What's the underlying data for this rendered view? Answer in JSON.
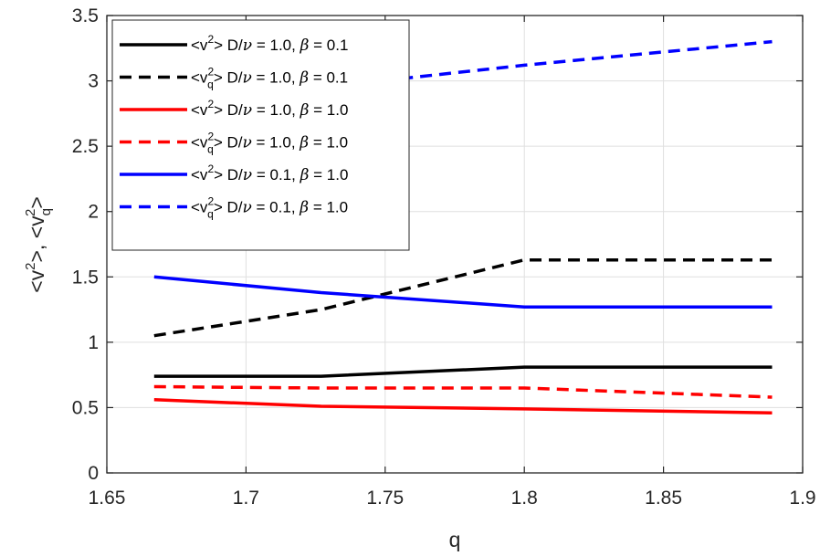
{
  "chart_data": {
    "type": "line",
    "xlabel": "q",
    "ylabel_parts": {
      "a": "<v",
      "a_sup": "2",
      "b": ">, <v",
      "b_sub": "q",
      "b_sup": "2",
      "c": ">"
    },
    "xlim": [
      1.65,
      1.9
    ],
    "ylim": [
      0,
      3.5
    ],
    "xticks": [
      1.65,
      1.7,
      1.75,
      1.8,
      1.85,
      1.9
    ],
    "xtick_labels": [
      "1.65",
      "1.7",
      "1.75",
      "1.8",
      "1.85",
      "1.9"
    ],
    "yticks": [
      0,
      0.5,
      1,
      1.5,
      2,
      2.5,
      3,
      3.5
    ],
    "ytick_labels": [
      "0",
      "0.5",
      "1",
      "1.5",
      "2",
      "2.5",
      "3",
      "3.5"
    ],
    "grid": true,
    "legend_position": "top-left",
    "colors": {
      "black": "#000000",
      "red": "#ff0000",
      "blue": "#0000ff",
      "grid": "#dfdfdf",
      "axis": "#262626"
    },
    "series": [
      {
        "label_prefix": "<v",
        "label_sub": "",
        "label_mid": "> D/",
        "label_nu": "ν",
        "label_eq1": " = 1.0, ",
        "label_beta": "β",
        "label_eq2": " = 0.1",
        "color": "#000000",
        "dash": "solid",
        "x": [
          1.667,
          1.727,
          1.8,
          1.889
        ],
        "y": [
          0.74,
          0.74,
          0.81,
          0.81
        ]
      },
      {
        "label_prefix": "<v",
        "label_sub": "q",
        "label_mid": "> D/",
        "label_nu": "ν",
        "label_eq1": " = 1.0, ",
        "label_beta": "β",
        "label_eq2": " = 0.1",
        "color": "#000000",
        "dash": "dashed",
        "x": [
          1.667,
          1.727,
          1.8,
          1.889
        ],
        "y": [
          1.05,
          1.25,
          1.63,
          1.63
        ]
      },
      {
        "label_prefix": "<v",
        "label_sub": "",
        "label_mid": "> D/",
        "label_nu": "ν",
        "label_eq1": " = 1.0, ",
        "label_beta": "β",
        "label_eq2": " = 1.0",
        "color": "#ff0000",
        "dash": "solid",
        "x": [
          1.667,
          1.727,
          1.8,
          1.889
        ],
        "y": [
          0.56,
          0.51,
          0.49,
          0.46
        ]
      },
      {
        "label_prefix": "<v",
        "label_sub": "q",
        "label_mid": "> D/",
        "label_nu": "ν",
        "label_eq1": " = 1.0, ",
        "label_beta": "β",
        "label_eq2": " = 1.0",
        "color": "#ff0000",
        "dash": "dashed",
        "x": [
          1.667,
          1.727,
          1.8,
          1.889
        ],
        "y": [
          0.66,
          0.65,
          0.65,
          0.58
        ]
      },
      {
        "label_prefix": "<v",
        "label_sub": "",
        "label_mid": "> D/",
        "label_nu": "ν",
        "label_eq1": " = 0.1, ",
        "label_beta": "β",
        "label_eq2": " = 1.0",
        "color": "#0000ff",
        "dash": "solid",
        "x": [
          1.667,
          1.727,
          1.8,
          1.889
        ],
        "y": [
          1.5,
          1.38,
          1.27,
          1.27
        ]
      },
      {
        "label_prefix": "<v",
        "label_sub": "q",
        "label_mid": "> D/",
        "label_nu": "ν",
        "label_eq1": " = 0.1, ",
        "label_beta": "β",
        "label_eq2": " = 1.0",
        "color": "#0000ff",
        "dash": "dashed",
        "x": [
          1.667,
          1.727,
          1.8,
          1.889
        ],
        "y": [
          2.76,
          2.95,
          3.12,
          3.3
        ]
      }
    ]
  }
}
